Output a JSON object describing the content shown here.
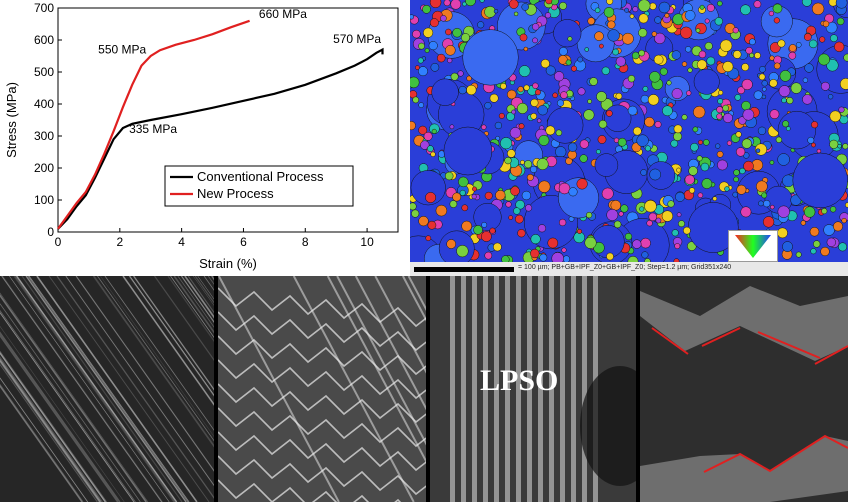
{
  "chart_data": {
    "type": "line",
    "xlabel": "Strain (%)",
    "ylabel": "Stress (MPa)",
    "xlim": [
      0,
      11
    ],
    "ylim": [
      0,
      700
    ],
    "xticks": [
      0,
      2,
      4,
      6,
      8,
      10
    ],
    "yticks": [
      0,
      100,
      200,
      300,
      400,
      500,
      600,
      700
    ],
    "grid": false,
    "legend_position": "bottom-right",
    "series": [
      {
        "name": "Conventional Process",
        "color": "#000000",
        "x": [
          0,
          0.3,
          0.6,
          0.9,
          1.2,
          1.5,
          1.8,
          2.1,
          2.4,
          3,
          4,
          5,
          6,
          7,
          8,
          9,
          9.6,
          10,
          10.3,
          10.5,
          10.5
        ],
        "y": [
          10,
          40,
          80,
          115,
          170,
          230,
          290,
          325,
          338,
          350,
          368,
          388,
          410,
          432,
          460,
          496,
          520,
          540,
          560,
          570,
          555
        ]
      },
      {
        "name": "New Process",
        "color": "#e02020",
        "x": [
          0,
          0.3,
          0.6,
          0.9,
          1.2,
          1.5,
          1.8,
          2.1,
          2.4,
          2.7,
          3,
          3.3,
          3.8,
          4.4,
          5,
          5.6,
          6.2
        ],
        "y": [
          10,
          50,
          90,
          125,
          180,
          245,
          315,
          390,
          460,
          520,
          550,
          568,
          585,
          600,
          618,
          640,
          660
        ]
      }
    ],
    "annotations": [
      "660 MPa",
      "550 MPa",
      "570 MPa",
      "335 MPa"
    ]
  },
  "ebsd": {
    "footer_text": "= 100 µm; PB+GB+IPF_Z0+GB+IPF_Z0; Step=1.2 µm; Grid351x240"
  },
  "tem": {
    "lpso_label": "LPSO"
  },
  "colors": {
    "conventional": "#000000",
    "new": "#e02020"
  }
}
